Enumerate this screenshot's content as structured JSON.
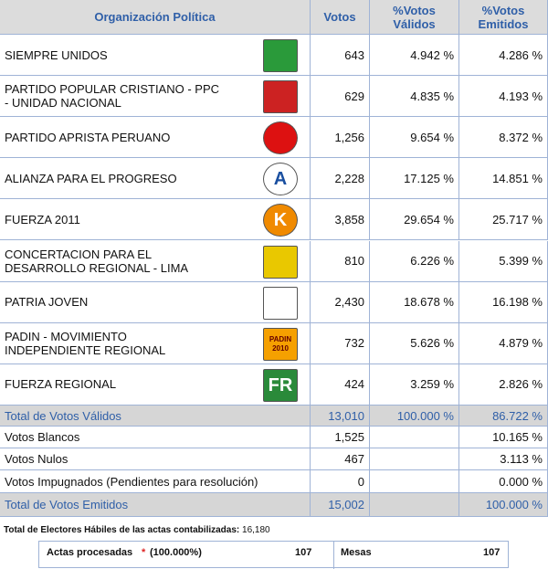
{
  "table": {
    "header": [
      "Organización Política",
      "Votos",
      "%Votos Válidos",
      "%Votos Emitidos"
    ],
    "parties": [
      {
        "name": "SIEMPRE UNIDOS",
        "votos": "643",
        "validos": "4.942 %",
        "emitidos": "4.286 %"
      },
      {
        "name": "PARTIDO POPULAR CRISTIANO - PPC - UNIDAD NACIONAL",
        "votos": "629",
        "validos": "4.835 %",
        "emitidos": "4.193 %"
      },
      {
        "name": "PARTIDO APRISTA PERUANO",
        "votos": "1,256",
        "validos": "9.654 %",
        "emitidos": "8.372 %"
      },
      {
        "name": "ALIANZA PARA EL PROGRESO",
        "votos": "2,228",
        "validos": "17.125 %",
        "emitidos": "14.851 %",
        "logo": "A"
      },
      {
        "name": "FUERZA 2011",
        "votos": "3,858",
        "validos": "29.654 %",
        "emitidos": "25.717 %",
        "logo": "K"
      },
      {
        "name": "CONCERTACION PARA EL DESARROLLO REGIONAL - LIMA",
        "votos": "810",
        "validos": "6.226 %",
        "emitidos": "5.399 %"
      },
      {
        "name": "PATRIA JOVEN",
        "votos": "2,430",
        "validos": "18.678 %",
        "emitidos": "16.198 %"
      },
      {
        "name": "PADIN - MOVIMIENTO INDEPENDIENTE REGIONAL",
        "votos": "732",
        "validos": "5.626 %",
        "emitidos": "4.879 %",
        "logo": "PADIN 2010"
      },
      {
        "name": "FUERZA REGIONAL",
        "votos": "424",
        "validos": "3.259 %",
        "emitidos": "2.826 %",
        "logo": "FR"
      }
    ],
    "summary": [
      {
        "name": "Total de Votos Válidos",
        "votos": "13,010",
        "validos": "100.000 %",
        "emitidos": "86.722 %",
        "total": true
      },
      {
        "name": "Votos Blancos",
        "votos": "1,525",
        "emitidos": "10.165 %"
      },
      {
        "name": "Votos Nulos",
        "votos": "467",
        "emitidos": "3.113 %"
      },
      {
        "name": "Votos Impugnados (Pendientes para resolución)",
        "votos": "0",
        "emitidos": "0.000 %"
      },
      {
        "name": "Total de Votos Emitidos",
        "votos": "15,002",
        "emitidos": "100.000 %",
        "total": true
      }
    ]
  },
  "footer": {
    "electores_label": "Total de Electores Hábiles de las actas contabilizadas:",
    "electores": "16,180",
    "actas_label": "Actas procesadas",
    "actas_mark": "*",
    "actas_pct": "(100.000%)",
    "actas": "107",
    "mesas_label": "Mesas",
    "mesas": "107"
  }
}
